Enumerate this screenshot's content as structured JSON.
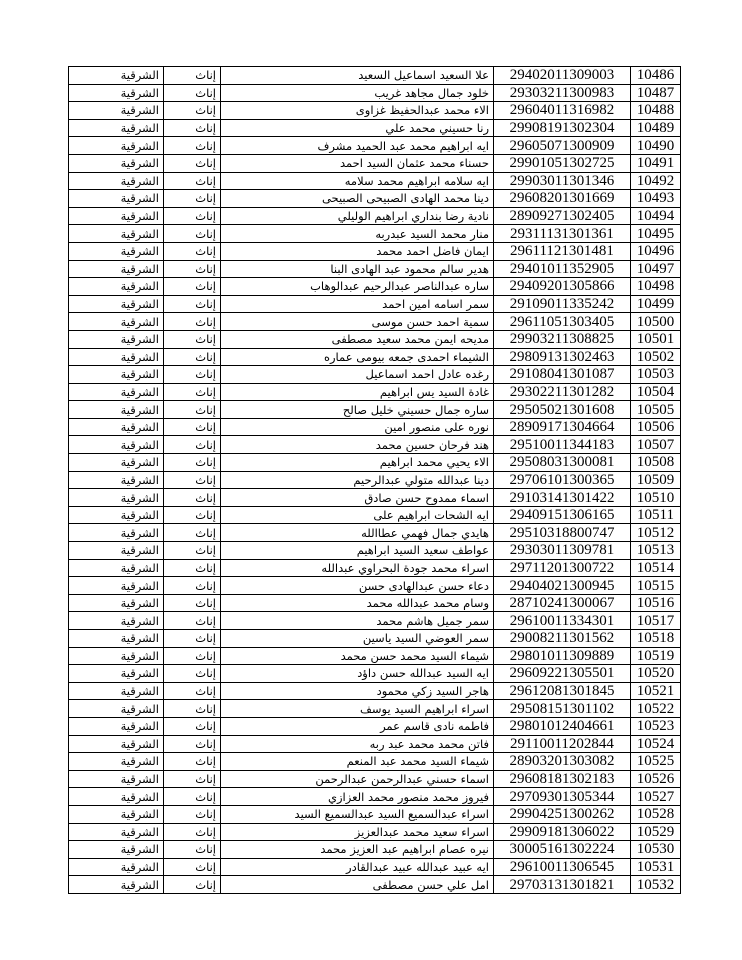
{
  "table": {
    "rows": [
      [
        "10486",
        "29402011309003",
        "علا السعيد اسماعيل السعيد",
        "إناث",
        "الشرقية"
      ],
      [
        "10487",
        "29303211300983",
        "خلود جمال مجاهد غريب",
        "إناث",
        "الشرقية"
      ],
      [
        "10488",
        "29604011316982",
        "الاء محمد عبدالحفيظ غزاوى",
        "إناث",
        "الشرقية"
      ],
      [
        "10489",
        "29908191302304",
        "رنا حسيني محمد علي",
        "إناث",
        "الشرقية"
      ],
      [
        "10490",
        "29605071300909",
        "ايه ابراهيم محمد عبد الحميد مشرف",
        "إناث",
        "الشرقية"
      ],
      [
        "10491",
        "29901051302725",
        "حسناء محمد عثمان السيد احمد",
        "إناث",
        "الشرقية"
      ],
      [
        "10492",
        "29903011301346",
        "ايه سلامه ابراهيم محمد سلامه",
        "إناث",
        "الشرقية"
      ],
      [
        "10493",
        "29608201301669",
        "دينا محمد الهادى الصبيحى الصبيحى",
        "إناث",
        "الشرقية"
      ],
      [
        "10494",
        "28909271302405",
        "نادية رضا بنداري ابراهيم الوليلي",
        "إناث",
        "الشرقية"
      ],
      [
        "10495",
        "29311131301361",
        "منار محمد السيد عبدربه",
        "إناث",
        "الشرقية"
      ],
      [
        "10496",
        "29611121301481",
        "ايمان فاضل احمد محمد",
        "إناث",
        "الشرقية"
      ],
      [
        "10497",
        "29401011352905",
        "هدير سالم محمود عبد الهادى البنا",
        "إناث",
        "الشرقية"
      ],
      [
        "10498",
        "29409201305866",
        "ساره عبدالناصر عبدالرحيم عبدالوهاب",
        "إناث",
        "الشرقية"
      ],
      [
        "10499",
        "29109011335242",
        "سمر اسامه امين احمد",
        "إناث",
        "الشرقية"
      ],
      [
        "10500",
        "29611051303405",
        "سمية احمد حسن موسى",
        "إناث",
        "الشرقية"
      ],
      [
        "10501",
        "29903211308825",
        "مديحه ايمن محمد سعيد مصطفى",
        "إناث",
        "الشرقية"
      ],
      [
        "10502",
        "29809131302463",
        "الشيماء احمدى جمعه بيومى عماره",
        "إناث",
        "الشرقية"
      ],
      [
        "10503",
        "29108041301087",
        "رغده عادل احمد اسماعيل",
        "إناث",
        "الشرقية"
      ],
      [
        "10504",
        "29302211301282",
        "غادة السيد يس ابراهيم",
        "إناث",
        "الشرقية"
      ],
      [
        "10505",
        "29505021301608",
        "ساره جمال حسيني خليل صالح",
        "إناث",
        "الشرقية"
      ],
      [
        "10506",
        "28909171304664",
        "نوره على منصور امين",
        "إناث",
        "الشرقية"
      ],
      [
        "10507",
        "29510011344183",
        "هند فرحان حسين محمد",
        "إناث",
        "الشرقية"
      ],
      [
        "10508",
        "29508031300081",
        "الاء يحيي محمد ابراهيم",
        "إناث",
        "الشرقية"
      ],
      [
        "10509",
        "29706101300365",
        "دينا عبدالله متولي عبدالرحيم",
        "إناث",
        "الشرقية"
      ],
      [
        "10510",
        "29103141301422",
        "اسماء ممدوح حسن صادق",
        "إناث",
        "الشرقية"
      ],
      [
        "10511",
        "29409151306165",
        "ايه الشحات ابراهيم على",
        "إناث",
        "الشرقية"
      ],
      [
        "10512",
        "29510318800747",
        "هايدي جمال فهمي عطاالله",
        "إناث",
        "الشرقية"
      ],
      [
        "10513",
        "29303011309781",
        "عواطف سعيد السيد ابراهيم",
        "إناث",
        "الشرقية"
      ],
      [
        "10514",
        "29711201300722",
        "اسراء محمد جودة البحراوي عبدالله",
        "إناث",
        "الشرقية"
      ],
      [
        "10515",
        "29404021300945",
        "دعاء حسن عبدالهادى حسن",
        "إناث",
        "الشرقية"
      ],
      [
        "10516",
        "28710241300067",
        "وسام محمد عبدالله محمد",
        "إناث",
        "الشرقية"
      ],
      [
        "10517",
        "29610011334301",
        "سمر جميل هاشم محمد",
        "إناث",
        "الشرقية"
      ],
      [
        "10518",
        "29008211301562",
        "سمر العوضي السيد ياسين",
        "إناث",
        "الشرقية"
      ],
      [
        "10519",
        "29801011309889",
        "شيماء السيد محمد حسن محمد",
        "إناث",
        "الشرقية"
      ],
      [
        "10520",
        "29609221305501",
        "ايه السيد عبدالله حسن داؤد",
        "إناث",
        "الشرقية"
      ],
      [
        "10521",
        "29612081301845",
        "هاجر السيد زكي محمود",
        "إناث",
        "الشرقية"
      ],
      [
        "10522",
        "29508151301102",
        "اسراء ابراهيم السيد يوسف",
        "إناث",
        "الشرقية"
      ],
      [
        "10523",
        "29801012404661",
        "فاطمه نادى قاسم عمر",
        "إناث",
        "الشرقية"
      ],
      [
        "10524",
        "29110011202844",
        "فاتن محمد محمد عبد ربه",
        "إناث",
        "الشرقية"
      ],
      [
        "10525",
        "28903201303082",
        "شيماء السيد محمد عبد المنعم",
        "إناث",
        "الشرقية"
      ],
      [
        "10526",
        "29608181302183",
        "اسماء حسني عبدالرحمن عبدالرحمن",
        "إناث",
        "الشرقية"
      ],
      [
        "10527",
        "29709301305344",
        "فيروز محمد منصور محمد العزازي",
        "إناث",
        "الشرقية"
      ],
      [
        "10528",
        "29904251300262",
        "اسراء عبدالسميع السيد عبدالسميع السيد",
        "إناث",
        "الشرقية"
      ],
      [
        "10529",
        "29909181306022",
        "اسراء سعيد محمد عبدالعزيز",
        "إناث",
        "الشرقية"
      ],
      [
        "10530",
        "30005161302224",
        "نيره عصام ابراهيم عبد العزيز محمد",
        "إناث",
        "الشرقية"
      ],
      [
        "10531",
        "29610011306545",
        "ايه عبيد عبدالله عبيد عبدالقادر",
        "إناث",
        "الشرقية"
      ],
      [
        "10532",
        "29703131301821",
        "امل علي حسن مصطفى",
        "إناث",
        "الشرقية"
      ]
    ]
  }
}
